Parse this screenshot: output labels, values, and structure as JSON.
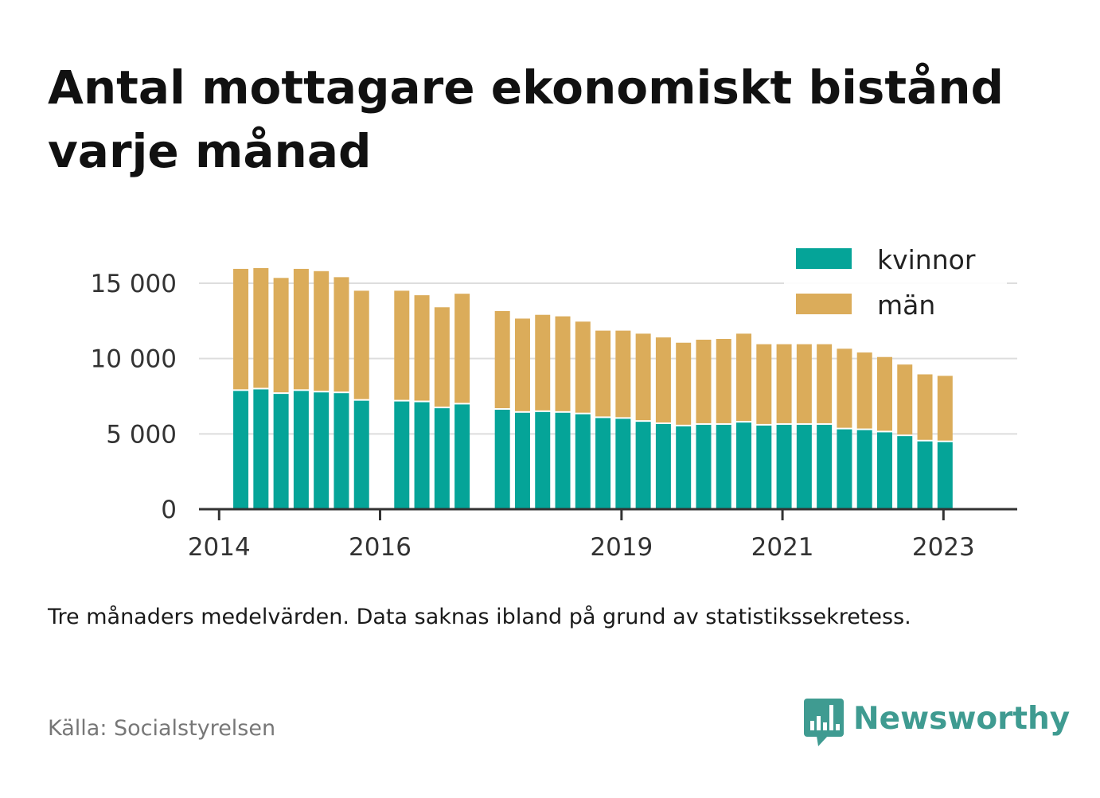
{
  "title": "Antal mottagare ekonomiskt bistånd varje månad",
  "note": "Tre månaders medelvärden. Data saknas ibland på grund av statistikssekretess.",
  "source": "Källa: Socialstyrelsen",
  "brand": {
    "name": "Newsworthy",
    "color": "#3f9b91",
    "icon": "bar-chart-speech-bubble-icon"
  },
  "chart_data": {
    "type": "bar",
    "stacked": true,
    "ylim": [
      0,
      16000
    ],
    "yticks": [
      0,
      5000,
      10000,
      15000
    ],
    "ytick_labels": [
      "0",
      "5 000",
      "10 000",
      "15 000"
    ],
    "xlim": [
      "2013-10",
      "2023-12"
    ],
    "xticks": [
      "2014-01",
      "2016-01",
      "2019-01",
      "2021-01",
      "2023-01"
    ],
    "xtick_labels": [
      "2014",
      "2016",
      "2019",
      "2021",
      "2023"
    ],
    "grid": true,
    "legend": "top-right",
    "x": [
      "2014-04",
      "2014-07",
      "2014-10",
      "2015-01",
      "2015-04",
      "2015-07",
      "2015-10",
      "2016-04",
      "2016-07",
      "2016-10",
      "2017-01",
      "2017-07",
      "2017-10",
      "2018-01",
      "2018-04",
      "2018-07",
      "2018-10",
      "2019-01",
      "2019-04",
      "2019-07",
      "2019-10",
      "2020-01",
      "2020-04",
      "2020-07",
      "2020-10",
      "2021-01",
      "2021-04",
      "2021-07",
      "2021-10",
      "2022-01",
      "2022-04",
      "2022-07",
      "2022-10",
      "2023-01"
    ],
    "series": [
      {
        "name": "kvinnor",
        "color": "#05a498",
        "values": [
          7850,
          7950,
          7650,
          7850,
          7750,
          7700,
          7200,
          7150,
          7100,
          6700,
          6950,
          6600,
          6400,
          6450,
          6400,
          6300,
          6050,
          6000,
          5800,
          5650,
          5500,
          5600,
          5600,
          5750,
          5550,
          5600,
          5600,
          5600,
          5300,
          5250,
          5100,
          4850,
          4500,
          4450
        ]
      },
      {
        "name": "män",
        "color": "#dbac5a",
        "values": [
          8100,
          8050,
          7700,
          8100,
          8050,
          7700,
          7300,
          7350,
          7100,
          6700,
          7350,
          6550,
          6250,
          6450,
          6400,
          6150,
          5800,
          5850,
          5850,
          5750,
          5550,
          5650,
          5700,
          5900,
          5400,
          5350,
          5350,
          5350,
          5350,
          5150,
          5000,
          4750,
          4450,
          4400
        ]
      }
    ]
  }
}
